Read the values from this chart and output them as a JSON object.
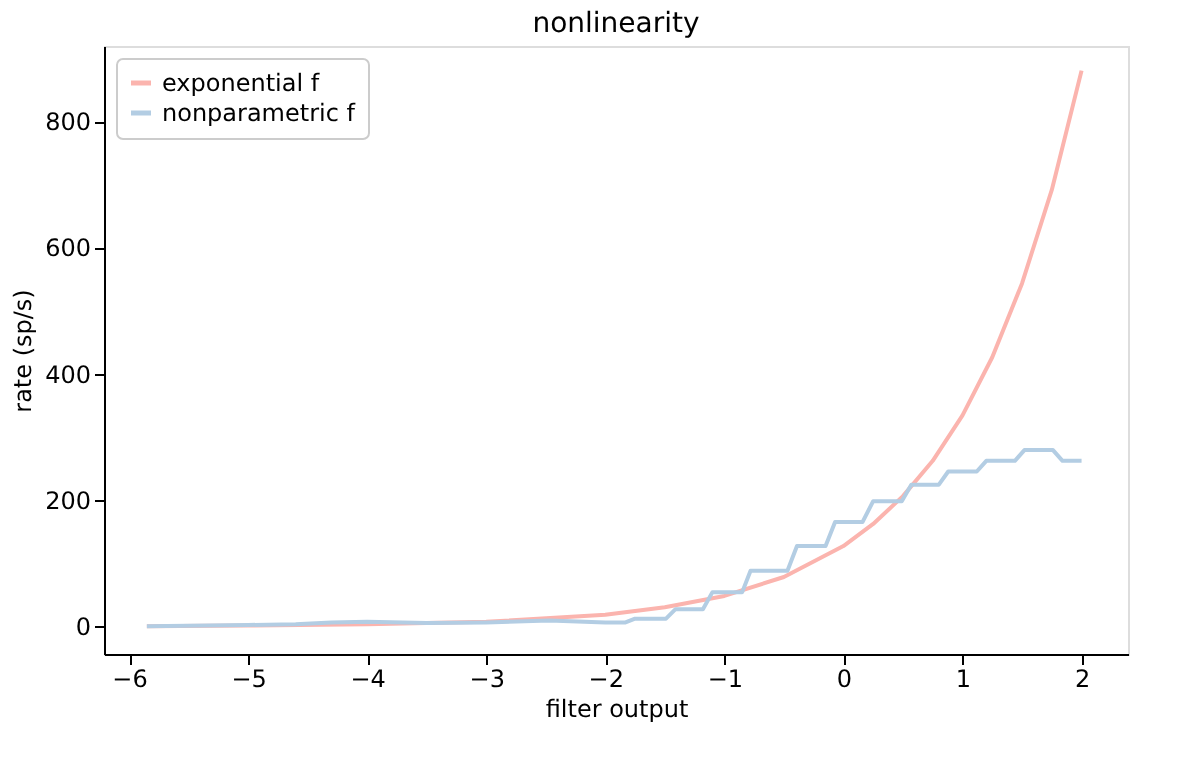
{
  "chart_data": {
    "type": "line",
    "title": "nonlinearity",
    "xlabel": "filter output",
    "ylabel": "rate (sp/s)",
    "xlim": [
      -6.21,
      2.39
    ],
    "ylim": [
      -44,
      919
    ],
    "xticks": [
      -6,
      -5,
      -4,
      -3,
      -2,
      -1,
      0,
      1,
      2
    ],
    "yticks": [
      0,
      200,
      400,
      600,
      800
    ],
    "grid": false,
    "legend": "top left",
    "line_style": "solid",
    "marker": "none",
    "series": [
      {
        "name": "exponential f",
        "color": "#fbb4ae",
        "x": [
          -5.85,
          -5,
          -4,
          -3,
          -2,
          -1.5,
          -1,
          -0.5,
          0,
          0.25,
          0.5,
          0.75,
          1,
          1.25,
          1.5,
          1.75,
          2
        ],
        "values": [
          0,
          1,
          3,
          7,
          18,
          30,
          48,
          78,
          127,
          162,
          206,
          262,
          334,
          426,
          543,
          691,
          880
        ]
      },
      {
        "name": "nonparametric f",
        "color": "#b3cde3",
        "x": [
          -5.85,
          -5,
          -4.6,
          -4.3,
          -4,
          -3.7,
          -3.5,
          -3,
          -2.47,
          -2,
          -1.83,
          -1.75,
          -1.49,
          -1.41,
          -1.18,
          -1.1,
          -0.85,
          -0.78,
          -0.47,
          -0.39,
          -0.15,
          -0.07,
          0.16,
          0.25,
          0.49,
          0.57,
          0.8,
          0.88,
          1.12,
          1.2,
          1.44,
          1.52,
          1.76,
          1.84,
          2.0
        ],
        "values": [
          0,
          2,
          3,
          6,
          7,
          6,
          5,
          6,
          9,
          6,
          6,
          12,
          12,
          27,
          27,
          54,
          54,
          88,
          88,
          127,
          127,
          165,
          165,
          198,
          198,
          224,
          224,
          245,
          245,
          262,
          262,
          279,
          279,
          262,
          262
        ]
      }
    ]
  }
}
